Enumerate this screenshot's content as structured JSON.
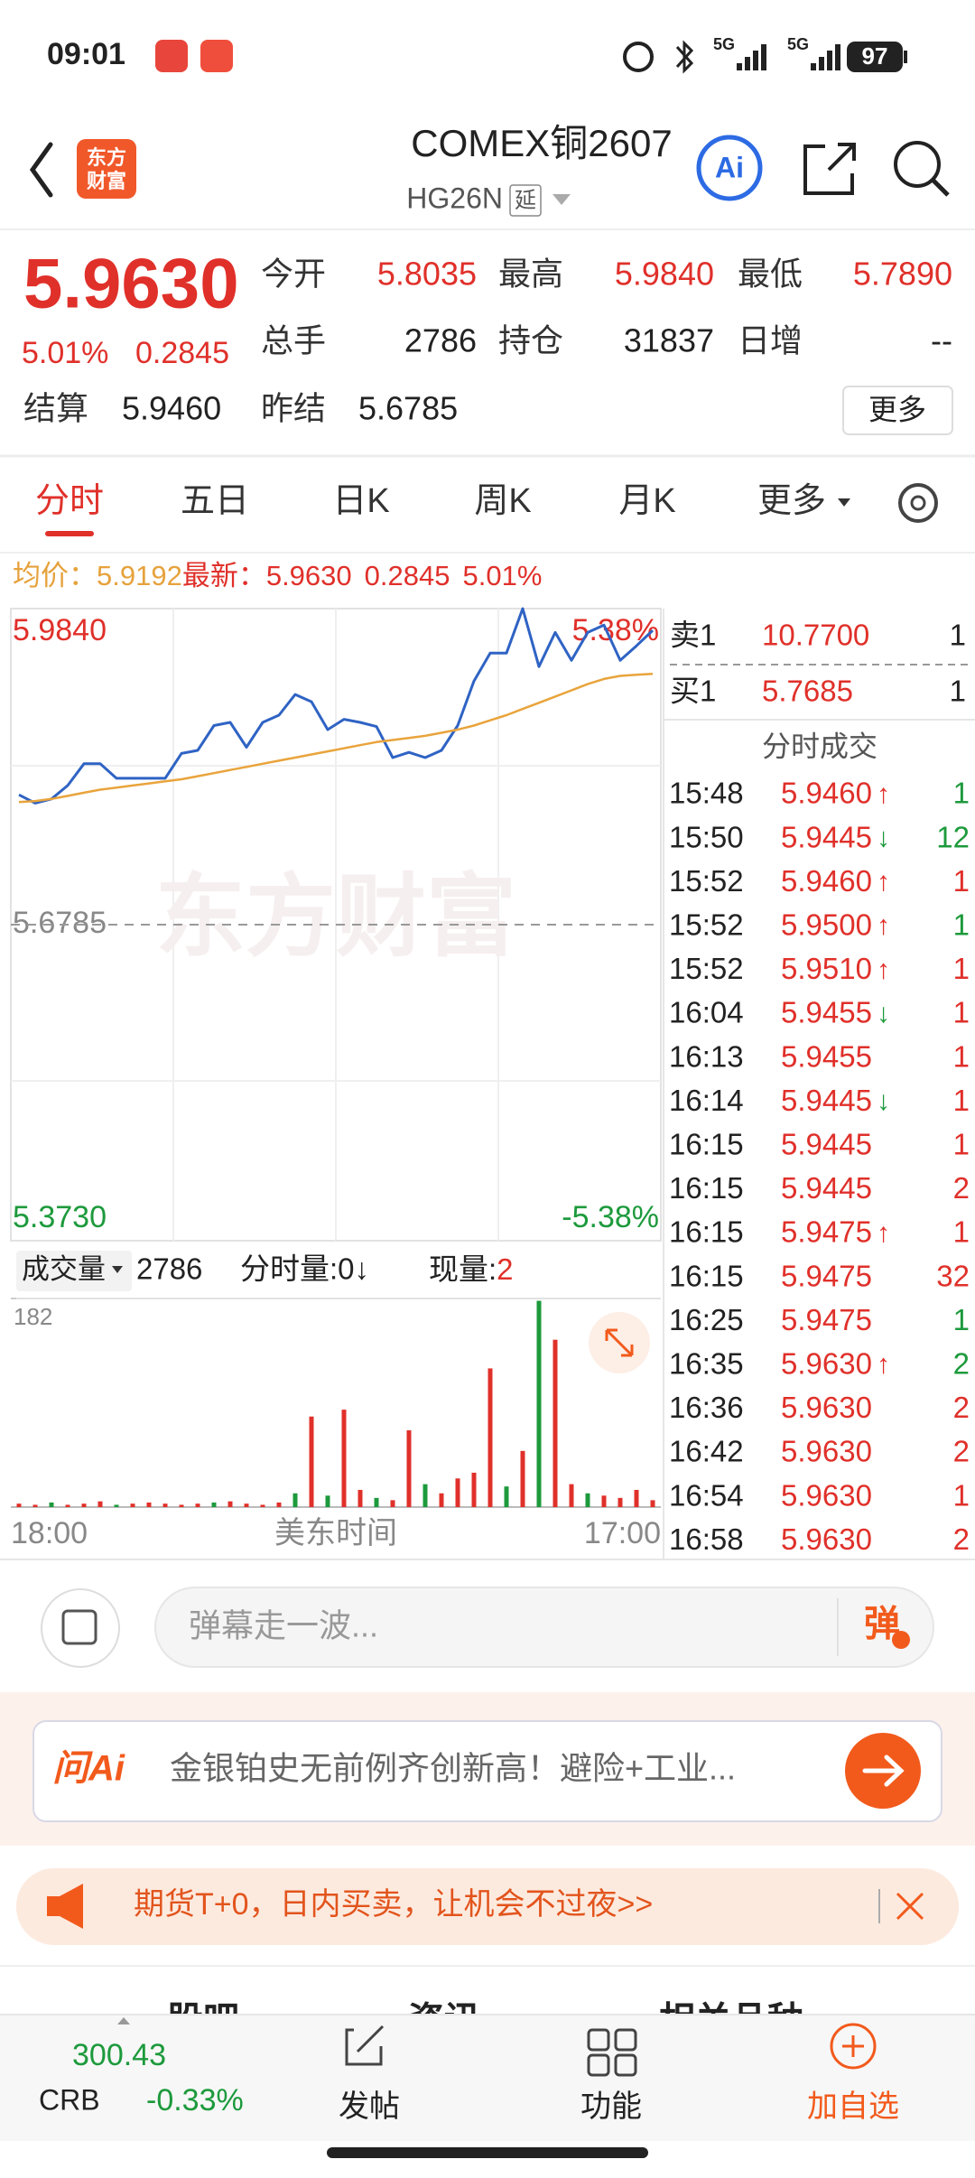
{
  "status_bar": {
    "time": "09:01",
    "net1": "5G",
    "net2": "5G",
    "battery": "97"
  },
  "header": {
    "logo": [
      "东方",
      "财富"
    ],
    "title": "COMEX铜2607",
    "code": "HG26N",
    "tag": "延",
    "ai": "Ai"
  },
  "quote": {
    "price": "5.9630",
    "change_pct": "5.01%",
    "change": "0.2845",
    "stats": [
      [
        {
          "label": "今开",
          "value": "5.8035"
        },
        {
          "label": "最高",
          "value": "5.9840"
        },
        {
          "label": "最低",
          "value": "5.7890"
        }
      ],
      [
        {
          "label": "总手",
          "value": "2786"
        },
        {
          "label": "持仓",
          "value": "31837"
        },
        {
          "label": "日增",
          "value": "--"
        }
      ],
      [
        {
          "label": "结算",
          "value": "5.9460"
        },
        {
          "label": "昨结",
          "value": "5.6785"
        }
      ]
    ],
    "more": "更多"
  },
  "tabs": {
    "items": [
      "分时",
      "五日",
      "日K",
      "周K",
      "月K",
      "更多"
    ],
    "active": 0
  },
  "summary": {
    "avg_label": "均价：",
    "avg": "5.9192",
    "last_label": "最新：",
    "last": "5.9630",
    "change": "0.2845",
    "pct": "5.01%"
  },
  "chart_data": {
    "type": "line",
    "watermark": "东方财富",
    "ylim": [
      5.373,
      5.984
    ],
    "yticks": [
      {
        "value": 5.984,
        "label": "5.9840"
      },
      {
        "value": 5.6785,
        "label": "5.6785"
      },
      {
        "value": 5.373,
        "label": "5.3730"
      }
    ],
    "right_labels": [
      "5.38%",
      "-5.38%"
    ],
    "series": [
      {
        "color": "#2f63c4",
        "values": [
          5.804,
          5.796,
          5.8,
          5.813,
          5.834,
          5.834,
          5.82,
          5.82,
          5.82,
          5.82,
          5.844,
          5.847,
          5.871,
          5.874,
          5.85,
          5.874,
          5.881,
          5.901,
          5.894,
          5.867,
          5.877,
          5.874,
          5.87,
          5.84,
          5.845,
          5.84,
          5.847,
          5.871,
          5.914,
          5.941,
          5.941,
          5.984,
          5.928,
          5.961,
          5.934,
          5.961,
          5.968,
          5.934,
          5.948,
          5.963
        ]
      },
      {
        "color": "#e9a43c",
        "values": [
          5.797,
          5.798,
          5.8,
          5.803,
          5.806,
          5.809,
          5.811,
          5.813,
          5.815,
          5.817,
          5.819,
          5.822,
          5.825,
          5.828,
          5.831,
          5.834,
          5.837,
          5.84,
          5.843,
          5.846,
          5.849,
          5.852,
          5.855,
          5.857,
          5.859,
          5.861,
          5.864,
          5.867,
          5.871,
          5.876,
          5.881,
          5.887,
          5.893,
          5.899,
          5.905,
          5.911,
          5.916,
          5.919,
          5.92,
          5.921
        ]
      }
    ],
    "x_labels": [
      "18:00",
      "美东时间",
      "17:00"
    ]
  },
  "volume_chart": {
    "type": "bar",
    "label": "成交量",
    "total": "2786",
    "period": "分时量:0↓",
    "current_label": "现量:",
    "current": "2",
    "ylim": [
      0,
      182
    ],
    "yticks": [
      182
    ],
    "values": [
      3,
      2,
      4,
      2,
      3,
      5,
      2,
      3,
      4,
      3,
      2,
      3,
      4,
      5,
      3,
      2,
      4,
      12,
      79,
      10,
      85,
      15,
      8,
      6,
      67,
      20,
      12,
      25,
      30,
      121,
      18,
      49,
      180,
      146,
      20,
      12,
      10,
      8,
      15,
      6
    ],
    "colors": [
      "#e0302a",
      "#e0302a",
      "#1d9a3c",
      "#e0302a",
      "#e0302a",
      "#e0302a",
      "#1d9a3c",
      "#e0302a",
      "#e0302a",
      "#e0302a",
      "#e0302a",
      "#e0302a",
      "#1d9a3c",
      "#e0302a",
      "#e0302a",
      "#e0302a",
      "#e0302a",
      "#1d9a3c",
      "#e0302a",
      "#1d9a3c",
      "#e0302a",
      "#e0302a",
      "#1d9a3c",
      "#e0302a",
      "#e0302a",
      "#1d9a3c",
      "#e0302a",
      "#e0302a",
      "#e0302a",
      "#e0302a",
      "#1d9a3c",
      "#e0302a",
      "#1d9a3c",
      "#e0302a",
      "#e0302a",
      "#1d9a3c",
      "#e0302a",
      "#e0302a",
      "#e0302a",
      "#e0302a"
    ]
  },
  "order_book": {
    "sell": {
      "label": "卖1",
      "price": "10.7700",
      "qty": "1"
    },
    "buy": {
      "label": "买1",
      "price": "5.7685",
      "qty": "1"
    }
  },
  "trades": {
    "title": "分时成交",
    "rows": [
      {
        "time": "15:48",
        "price": "5.9460",
        "arrow": "↑",
        "arrow_color": "#e0302a",
        "vol": "1",
        "vol_color": "#1d9a3c"
      },
      {
        "time": "15:50",
        "price": "5.9445",
        "arrow": "↓",
        "arrow_color": "#1d9a3c",
        "vol": "12",
        "vol_color": "#1d9a3c"
      },
      {
        "time": "15:52",
        "price": "5.9460",
        "arrow": "↑",
        "arrow_color": "#e0302a",
        "vol": "1",
        "vol_color": "#e0302a"
      },
      {
        "time": "15:52",
        "price": "5.9500",
        "arrow": "↑",
        "arrow_color": "#e0302a",
        "vol": "1",
        "vol_color": "#1d9a3c"
      },
      {
        "time": "15:52",
        "price": "5.9510",
        "arrow": "↑",
        "arrow_color": "#e0302a",
        "vol": "1",
        "vol_color": "#e0302a"
      },
      {
        "time": "16:04",
        "price": "5.9455",
        "arrow": "↓",
        "arrow_color": "#1d9a3c",
        "vol": "1",
        "vol_color": "#e0302a"
      },
      {
        "time": "16:13",
        "price": "5.9455",
        "vol": "1",
        "vol_color": "#e0302a"
      },
      {
        "time": "16:14",
        "price": "5.9445",
        "arrow": "↓",
        "arrow_color": "#1d9a3c",
        "vol": "1",
        "vol_color": "#e0302a"
      },
      {
        "time": "16:15",
        "price": "5.9445",
        "vol": "1",
        "vol_color": "#e0302a"
      },
      {
        "time": "16:15",
        "price": "5.9445",
        "vol": "2",
        "vol_color": "#e0302a"
      },
      {
        "time": "16:15",
        "price": "5.9475",
        "arrow": "↑",
        "arrow_color": "#e0302a",
        "vol": "1",
        "vol_color": "#e0302a"
      },
      {
        "time": "16:15",
        "price": "5.9475",
        "vol": "32",
        "vol_color": "#e0302a"
      },
      {
        "time": "16:25",
        "price": "5.9475",
        "vol": "1",
        "vol_color": "#1d9a3c"
      },
      {
        "time": "16:35",
        "price": "5.9630",
        "arrow": "↑",
        "arrow_color": "#e0302a",
        "vol": "2",
        "vol_color": "#1d9a3c"
      },
      {
        "time": "16:36",
        "price": "5.9630",
        "vol": "2",
        "vol_color": "#e0302a"
      },
      {
        "time": "16:42",
        "price": "5.9630",
        "vol": "2",
        "vol_color": "#e0302a"
      },
      {
        "time": "16:54",
        "price": "5.9630",
        "vol": "1",
        "vol_color": "#e0302a"
      },
      {
        "time": "16:58",
        "price": "5.9630",
        "vol": "2",
        "vol_color": "#e0302a"
      }
    ]
  },
  "comment": {
    "placeholder": "弹幕走一波...",
    "button": "弹"
  },
  "ai": {
    "badge": "问Ai",
    "text": "金银铂史无前例齐创新高！避险+工业..."
  },
  "promo": {
    "text": "期货T+0，日内买卖，让机会不过夜>>"
  },
  "section_tabs": [
    "股吧",
    "资讯",
    "相关品种"
  ],
  "bottom_bar": {
    "index_value": "300.43",
    "index_name": "CRB",
    "index_change": "-0.33%",
    "items": [
      "发帖",
      "功能",
      "加自选"
    ]
  }
}
